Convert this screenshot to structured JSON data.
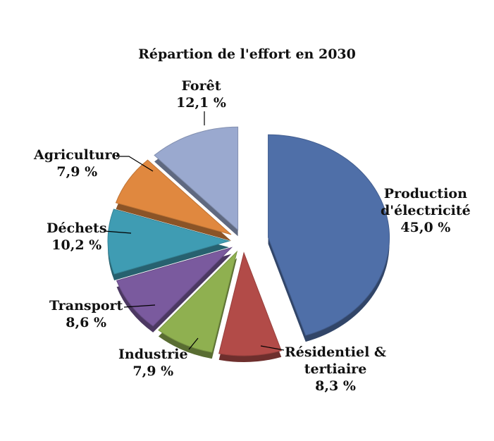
{
  "chart_data": {
    "type": "pie",
    "title": "Répartion de l'effort en 2030",
    "slices": [
      {
        "name": "Production d'électricité",
        "label_lines": [
          "Production",
          "d'électricité"
        ],
        "value": 45.0,
        "value_label": "45,0 %",
        "color": "#4f6fa8"
      },
      {
        "name": "Résidentiel & tertiaire",
        "label_lines": [
          "Résidentiel &",
          "tertiaire"
        ],
        "value": 8.3,
        "value_label": "8,3 %",
        "color": "#b24b48"
      },
      {
        "name": "Industrie",
        "label_lines": [
          "Industrie"
        ],
        "value": 7.9,
        "value_label": "7,9 %",
        "color": "#8fb050"
      },
      {
        "name": "Transport",
        "label_lines": [
          "Transport"
        ],
        "value": 8.6,
        "value_label": "8,6 %",
        "color": "#7a5a9e"
      },
      {
        "name": "Déchets",
        "label_lines": [
          "Déchets"
        ],
        "value": 10.2,
        "value_label": "10,2 %",
        "color": "#3f9cb3"
      },
      {
        "name": "Agriculture",
        "label_lines": [
          "Agriculture"
        ],
        "value": 7.9,
        "value_label": "7,9 %",
        "color": "#e0883f"
      },
      {
        "name": "Forêt",
        "label_lines": [
          "Forêt"
        ],
        "value": 12.1,
        "value_label": "12,1 %",
        "color": "#9aa9cf"
      }
    ]
  }
}
